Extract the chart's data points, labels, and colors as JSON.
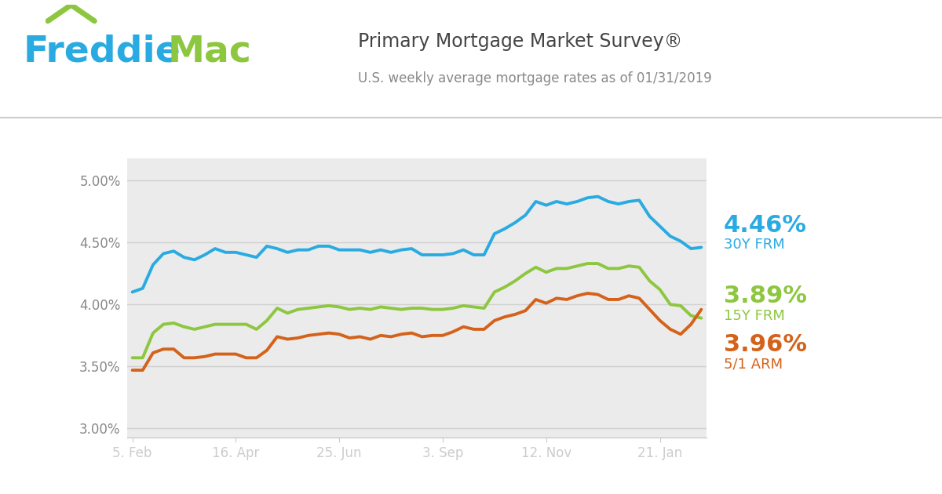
{
  "title": "Primary Mortgage Market Survey®",
  "subtitle": "U.S. weekly average mortgage rates as of 01/31/2019",
  "plot_bg_color": "#ebebeb",
  "grid_color": "#d0d0d0",
  "colors": {
    "30Y FRM": "#29abe2",
    "15Y FRM": "#8dc63f",
    "5/1 ARM": "#d4621a"
  },
  "freddie_blue": "#29abe2",
  "freddie_green": "#8dc63f",
  "x_tick_labels": [
    "5. Feb",
    "16. Apr",
    "25. Jun",
    "3. Sep",
    "12. Nov",
    "21. Jan"
  ],
  "x_tick_positions": [
    0,
    10,
    20,
    30,
    40,
    51
  ],
  "ylim": [
    2.93,
    5.18
  ],
  "yticks": [
    3.0,
    3.5,
    4.0,
    4.5,
    5.0
  ],
  "data_30Y": [
    4.1,
    4.13,
    4.32,
    4.41,
    4.43,
    4.38,
    4.36,
    4.4,
    4.45,
    4.42,
    4.42,
    4.4,
    4.38,
    4.47,
    4.45,
    4.42,
    4.44,
    4.44,
    4.47,
    4.47,
    4.44,
    4.44,
    4.44,
    4.42,
    4.44,
    4.42,
    4.44,
    4.45,
    4.4,
    4.4,
    4.4,
    4.41,
    4.44,
    4.4,
    4.4,
    4.57,
    4.61,
    4.66,
    4.72,
    4.83,
    4.8,
    4.83,
    4.81,
    4.83,
    4.86,
    4.87,
    4.83,
    4.81,
    4.83,
    4.84,
    4.71,
    4.63,
    4.55,
    4.51,
    4.45,
    4.46
  ],
  "data_15Y": [
    3.57,
    3.57,
    3.77,
    3.84,
    3.85,
    3.82,
    3.8,
    3.82,
    3.84,
    3.84,
    3.84,
    3.84,
    3.8,
    3.87,
    3.97,
    3.93,
    3.96,
    3.97,
    3.98,
    3.99,
    3.98,
    3.96,
    3.97,
    3.96,
    3.98,
    3.97,
    3.96,
    3.97,
    3.97,
    3.96,
    3.96,
    3.97,
    3.99,
    3.98,
    3.97,
    4.1,
    4.14,
    4.19,
    4.25,
    4.3,
    4.26,
    4.29,
    4.29,
    4.31,
    4.33,
    4.33,
    4.29,
    4.29,
    4.31,
    4.3,
    4.19,
    4.12,
    4.0,
    3.99,
    3.91,
    3.89
  ],
  "data_5ARM": [
    3.47,
    3.47,
    3.61,
    3.64,
    3.64,
    3.57,
    3.57,
    3.58,
    3.6,
    3.6,
    3.6,
    3.57,
    3.57,
    3.63,
    3.74,
    3.72,
    3.73,
    3.75,
    3.76,
    3.77,
    3.76,
    3.73,
    3.74,
    3.72,
    3.75,
    3.74,
    3.76,
    3.77,
    3.74,
    3.75,
    3.75,
    3.78,
    3.82,
    3.8,
    3.8,
    3.87,
    3.9,
    3.92,
    3.95,
    4.04,
    4.01,
    4.05,
    4.04,
    4.07,
    4.09,
    4.08,
    4.04,
    4.04,
    4.07,
    4.05,
    3.96,
    3.87,
    3.8,
    3.76,
    3.84,
    3.96
  ],
  "label_30Y_pct": "4.46%",
  "label_30Y_name": "30Y FRM",
  "label_15Y_pct": "3.89%",
  "label_15Y_name": "15Y FRM",
  "label_5ARM_pct": "3.96%",
  "label_5ARM_name": "5/1 ARM",
  "header_line_color": "#cccccc",
  "tick_color": "#888888",
  "title_color": "#444444",
  "subtitle_color": "#888888"
}
